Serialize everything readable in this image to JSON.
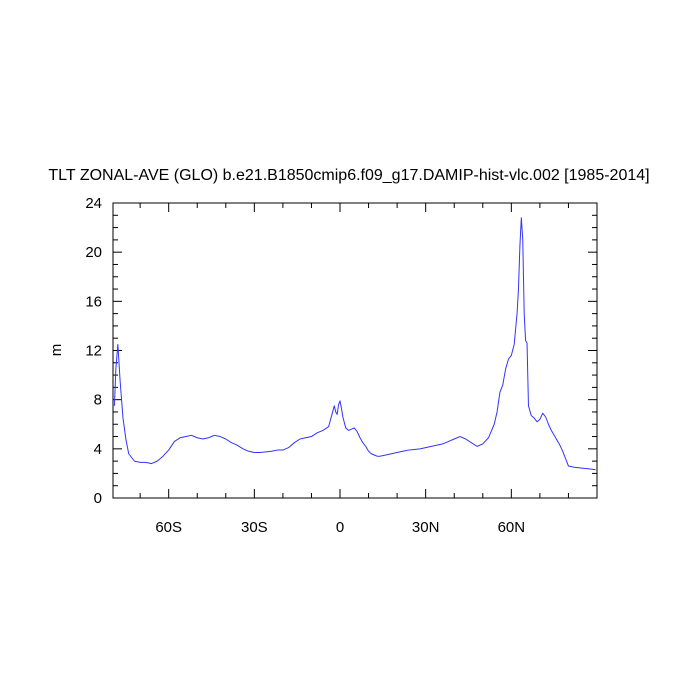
{
  "chart_data": {
    "type": "line",
    "title": "TLT ZONAL-AVE (GLO) b.e21.B1850cmip6.f09_g17.DAMIP-hist-vlc.002 [1985-2014]",
    "xlabel": "",
    "ylabel": "m",
    "xlim": [
      -79.5,
      90
    ],
    "ylim": [
      0,
      24
    ],
    "x_ticks": [
      {
        "value": -60,
        "label": "60S"
      },
      {
        "value": -30,
        "label": "30S"
      },
      {
        "value": 0,
        "label": "0"
      },
      {
        "value": 30,
        "label": "30N"
      },
      {
        "value": 60,
        "label": "60N"
      }
    ],
    "y_ticks": [
      {
        "value": 0,
        "label": "0"
      },
      {
        "value": 4,
        "label": "4"
      },
      {
        "value": 8,
        "label": "8"
      },
      {
        "value": 12,
        "label": "12"
      },
      {
        "value": 16,
        "label": "16"
      },
      {
        "value": 20,
        "label": "20"
      },
      {
        "value": 24,
        "label": "24"
      }
    ],
    "grid": false,
    "series": [
      {
        "color": "#3333ff",
        "x": [
          -79,
          -78.5,
          -77.8,
          -77,
          -76,
          -75,
          -74,
          -72,
          -70,
          -68,
          -66,
          -64,
          -62,
          -60,
          -58,
          -56,
          -54,
          -52,
          -50,
          -48,
          -46,
          -44,
          -42,
          -40,
          -38,
          -36,
          -34,
          -32,
          -30,
          -28,
          -26,
          -24,
          -22,
          -20,
          -18,
          -16,
          -14,
          -12,
          -10,
          -8,
          -6,
          -4,
          -2,
          -1.5,
          -1,
          -0.5,
          0,
          0.5,
          1,
          2,
          3,
          4,
          5,
          6,
          7,
          8,
          9,
          10,
          11,
          12,
          13,
          14,
          16,
          18,
          20,
          22,
          24,
          26,
          28,
          30,
          32,
          34,
          36,
          38,
          40,
          42,
          44,
          46,
          48,
          50,
          52,
          54,
          55,
          56,
          57,
          58,
          59,
          60,
          61,
          62,
          62.5,
          63,
          63.5,
          64,
          64.5,
          65,
          65.5,
          66,
          67,
          68,
          69,
          70,
          71,
          72,
          73,
          74,
          75,
          76,
          77,
          78,
          79,
          80,
          82,
          84,
          86,
          88,
          89.5
        ],
        "y": [
          7.5,
          10.5,
          12.5,
          9.5,
          6.5,
          4.8,
          3.6,
          3.0,
          2.9,
          2.9,
          2.8,
          3.0,
          3.4,
          3.9,
          4.6,
          4.9,
          5.0,
          5.1,
          4.9,
          4.8,
          4.9,
          5.1,
          5.0,
          4.8,
          4.5,
          4.3,
          4.0,
          3.8,
          3.7,
          3.7,
          3.75,
          3.8,
          3.9,
          3.9,
          4.1,
          4.5,
          4.8,
          4.9,
          5.0,
          5.3,
          5.5,
          5.8,
          7.5,
          7.0,
          6.8,
          7.6,
          7.9,
          7.3,
          6.6,
          5.7,
          5.5,
          5.6,
          5.7,
          5.4,
          4.9,
          4.5,
          4.2,
          3.8,
          3.6,
          3.5,
          3.4,
          3.4,
          3.5,
          3.6,
          3.7,
          3.8,
          3.9,
          3.95,
          4.0,
          4.1,
          4.2,
          4.3,
          4.4,
          4.6,
          4.8,
          5.0,
          4.8,
          4.5,
          4.2,
          4.4,
          4.9,
          6.0,
          7.0,
          8.6,
          9.2,
          10.5,
          11.3,
          11.6,
          12.5,
          15.0,
          17.0,
          20.5,
          22.8,
          21.0,
          15.0,
          12.8,
          12.6,
          7.5,
          6.7,
          6.5,
          6.2,
          6.4,
          6.9,
          6.6,
          6.0,
          5.5,
          5.1,
          4.7,
          4.3,
          3.8,
          3.2,
          2.6,
          2.5,
          2.45,
          2.4,
          2.35,
          2.3
        ]
      }
    ]
  }
}
